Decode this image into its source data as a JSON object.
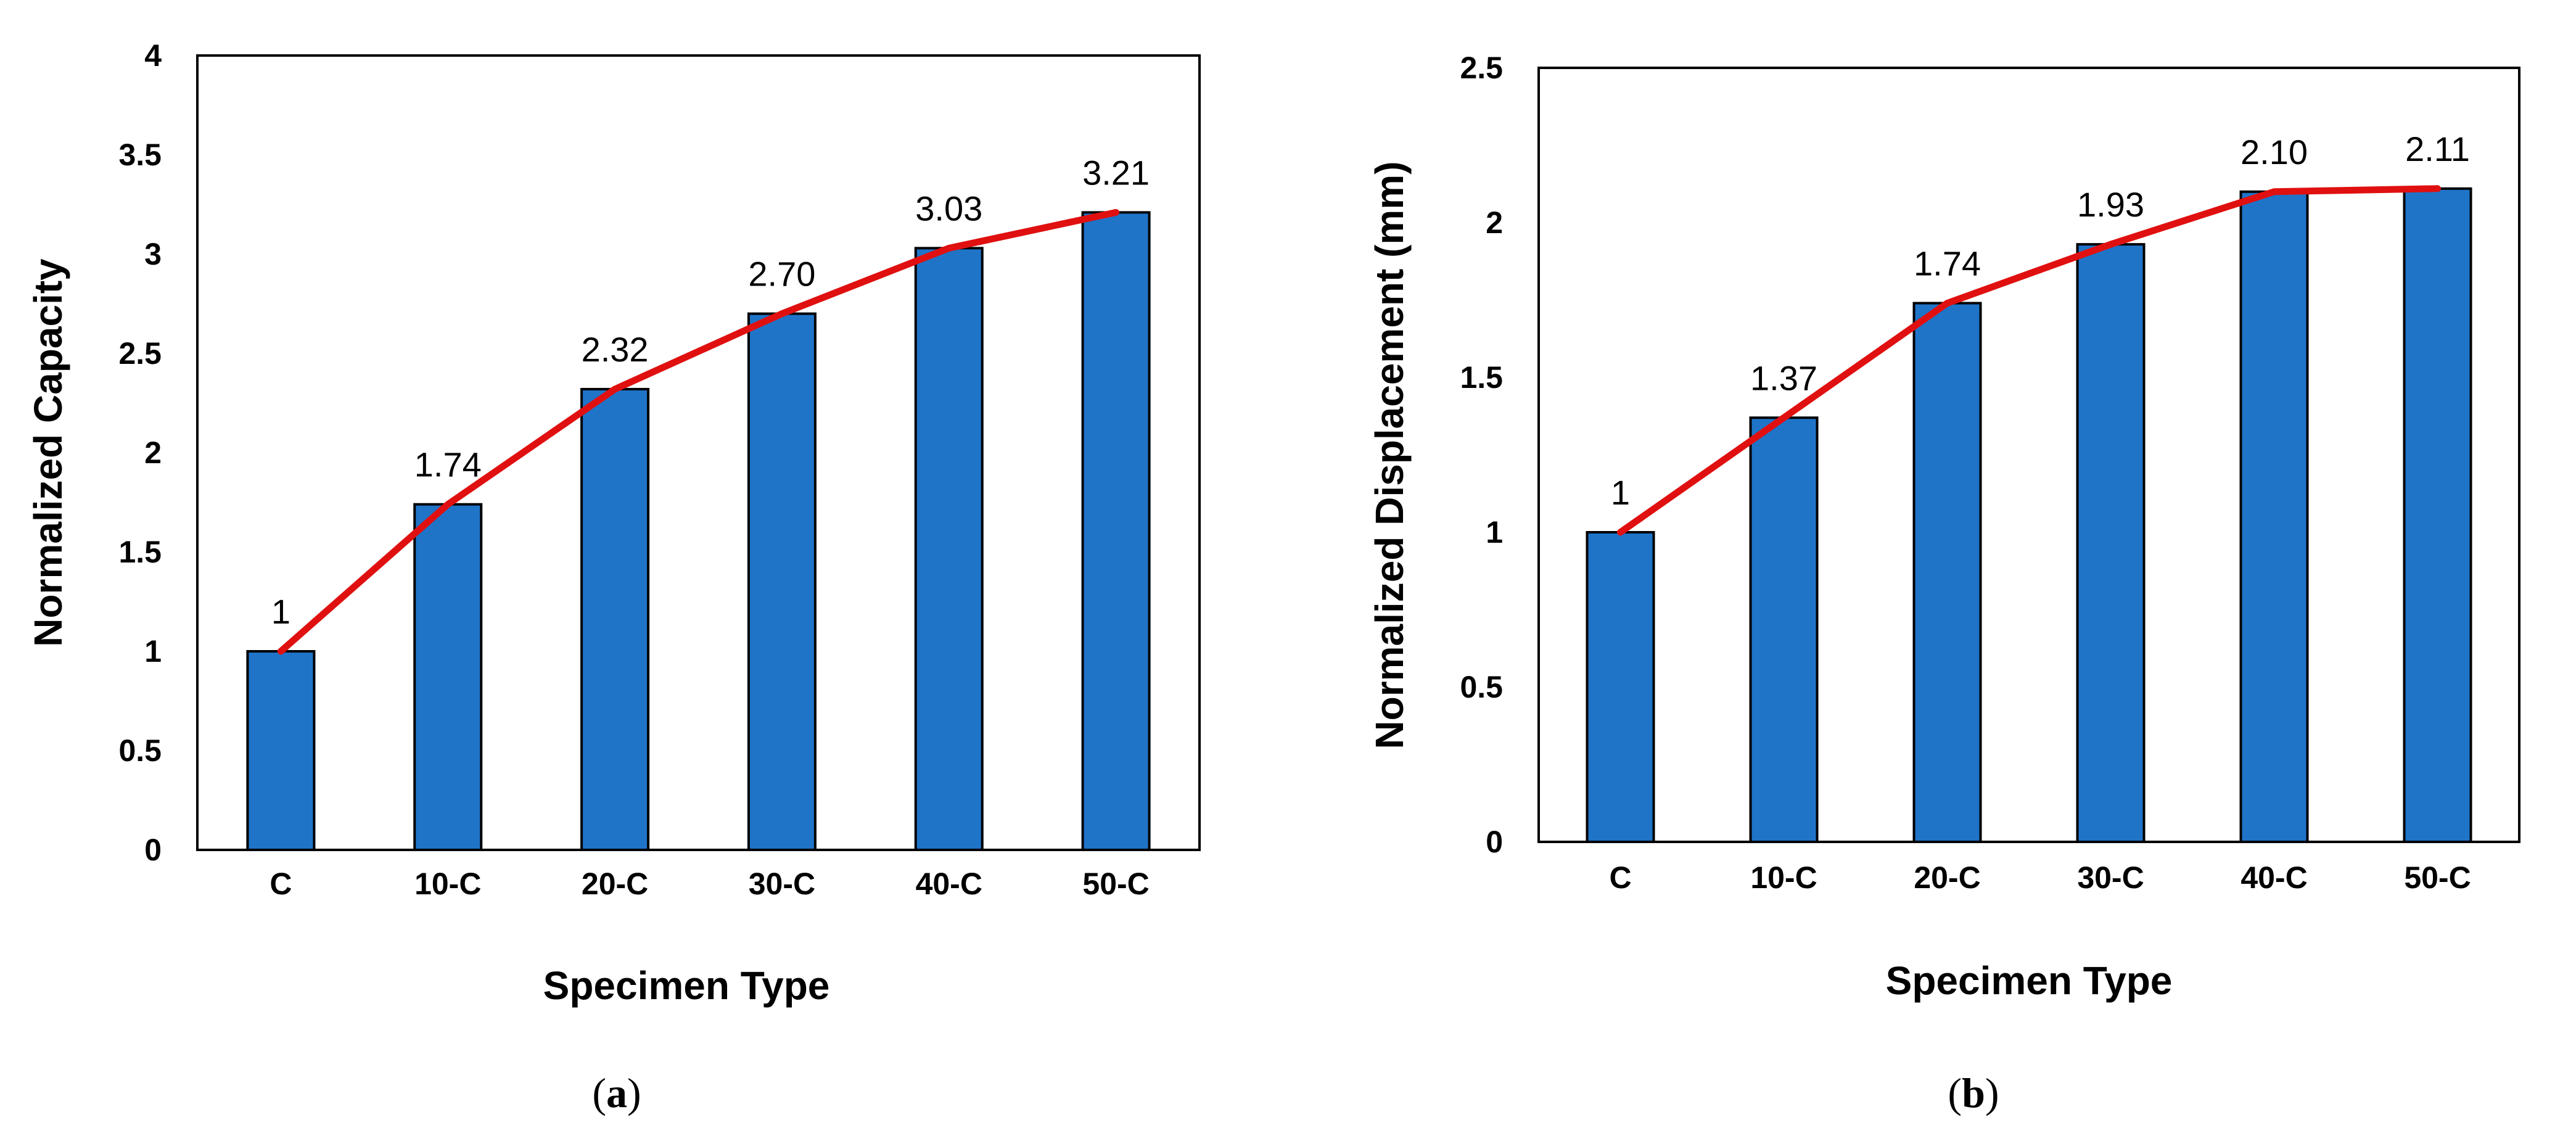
{
  "colors": {
    "bar_fill": "#1F74C8",
    "bar_stroke": "#000000",
    "line": "#E01010",
    "axis": "#000000"
  },
  "chart_data": [
    {
      "type": "bar",
      "panel": "a",
      "caption": {
        "open": "(",
        "letter": "a",
        "close": ")"
      },
      "categories": [
        "C",
        "10-C",
        "20-C",
        "30-C",
        "40-C",
        "50-C"
      ],
      "values": [
        1,
        1.74,
        2.32,
        2.7,
        3.03,
        3.21
      ],
      "data_labels": [
        "1",
        "1.74",
        "2.32",
        "2.70",
        "3.03",
        "3.21"
      ],
      "overlay_line": {
        "values": [
          1,
          1.74,
          2.32,
          2.7,
          3.03,
          3.21
        ]
      },
      "xlabel": "Specimen Type",
      "ylabel": "Normalized Capacity",
      "ylim": [
        0,
        4
      ],
      "yticks": [
        "0",
        "0.5",
        "1",
        "1.5",
        "2",
        "2.5",
        "3",
        "3.5",
        "4"
      ],
      "grid": false
    },
    {
      "type": "bar",
      "panel": "b",
      "caption": {
        "open": "(",
        "letter": "b",
        "close": ")"
      },
      "categories": [
        "C",
        "10-C",
        "20-C",
        "30-C",
        "40-C",
        "50-C"
      ],
      "values": [
        1,
        1.37,
        1.74,
        1.93,
        2.1,
        2.11
      ],
      "data_labels": [
        "1",
        "1.37",
        "1.74",
        "1.93",
        "2.10",
        "2.11"
      ],
      "overlay_line": {
        "values": [
          1,
          1.37,
          1.74,
          1.93,
          2.1,
          2.11
        ]
      },
      "xlabel": "Specimen Type",
      "ylabel": "Normalized Displacement (mm)",
      "ylim": [
        0,
        2.5
      ],
      "yticks": [
        "0",
        "0.5",
        "1",
        "1.5",
        "2",
        "2.5"
      ],
      "grid": false
    }
  ]
}
